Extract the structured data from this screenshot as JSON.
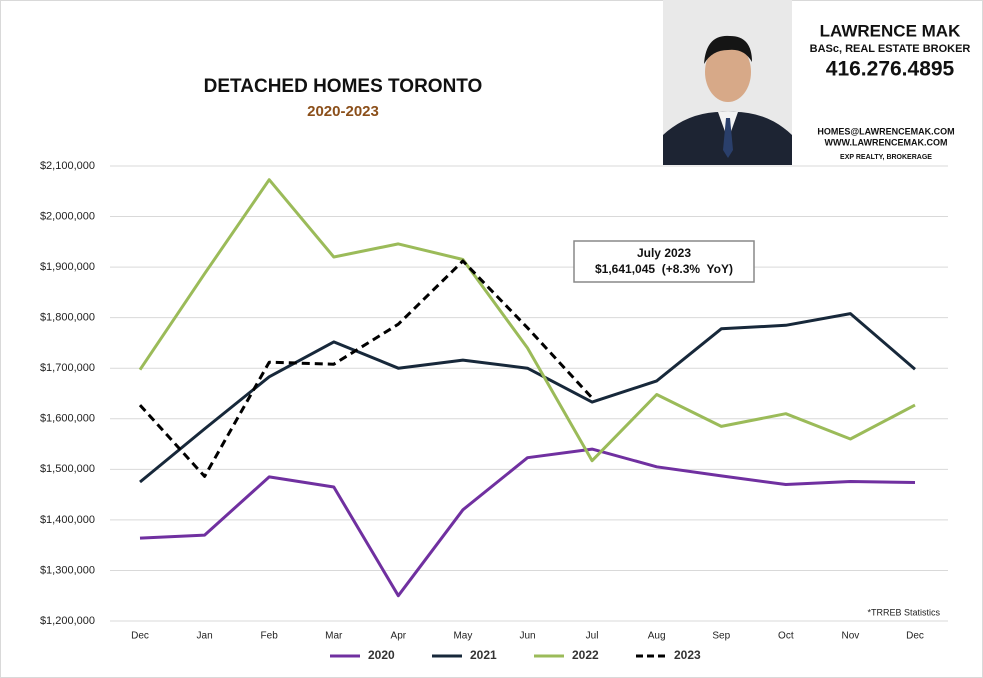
{
  "chart_data": {
    "type": "line",
    "title": "DETACHED HOMES TORONTO",
    "subtitle": "2020-2023",
    "categories": [
      "Dec",
      "Jan",
      "Feb",
      "Mar",
      "Apr",
      "May",
      "Jun",
      "Jul",
      "Aug",
      "Sep",
      "Oct",
      "Nov",
      "Dec"
    ],
    "series": [
      {
        "name": "2020",
        "color": "#7030a0",
        "values": [
          1364000,
          1370000,
          1485000,
          1465000,
          1250000,
          1420000,
          1523000,
          1540000,
          1505000,
          1487000,
          1470000,
          1476000,
          1474000
        ]
      },
      {
        "name": "2021",
        "color": "#17283a",
        "values": [
          1475000,
          1580000,
          1683000,
          1752000,
          1700000,
          1716000,
          1700000,
          1633000,
          1675000,
          1778000,
          1785000,
          1808000,
          1698000
        ]
      },
      {
        "name": "2022",
        "color": "#9bbb59",
        "values": [
          1697000,
          1887000,
          2073000,
          1920000,
          1946000,
          1915000,
          1740000,
          1517000,
          1648000,
          1585000,
          1610000,
          1560000,
          1627000
        ]
      },
      {
        "name": "2023",
        "color": "#000000",
        "dash": "dashed",
        "values": [
          1627000,
          1486000,
          1712000,
          1708000,
          1787000,
          1912000,
          1780000,
          1641045,
          null,
          null,
          null,
          null,
          null
        ]
      }
    ],
    "ylim": [
      1200000,
      2100000
    ],
    "yticks": [
      {
        "value": 1200000,
        "label": "$1,200,000"
      },
      {
        "value": 1300000,
        "label": "$1,300,000"
      },
      {
        "value": 1400000,
        "label": "$1,400,000"
      },
      {
        "value": 1500000,
        "label": "$1,500,000"
      },
      {
        "value": 1600000,
        "label": "$1,600,000"
      },
      {
        "value": 1700000,
        "label": "$1,700,000"
      },
      {
        "value": 1800000,
        "label": "$1,800,000"
      },
      {
        "value": 1900000,
        "label": "$1,900,000"
      },
      {
        "value": 2000000,
        "label": "$2,000,000"
      },
      {
        "value": 2100000,
        "label": "$2,100,000"
      }
    ],
    "grid": true,
    "legend": "bottom",
    "annotation": {
      "title": "July 2023",
      "text": "$1,641,045  (+8.3%  YoY)"
    },
    "footnote": "*TRREB Statistics"
  },
  "agent": {
    "name": "LAWRENCE MAK",
    "credentials": "BASc, REAL ESTATE BROKER",
    "phone": "416.276.4895",
    "email": "HOMES@LAWRENCEMAK.COM",
    "website": "WWW.LAWRENCEMAK.COM",
    "brokerage": "EXP REALTY, BROKERAGE"
  }
}
